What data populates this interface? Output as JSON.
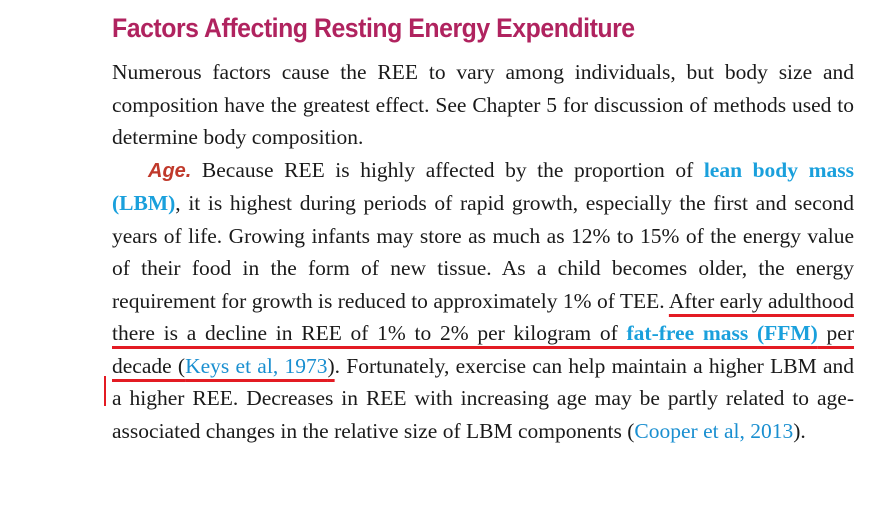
{
  "heading": "Factors Affecting Resting Energy Expenditure",
  "para1": "Numerous factors cause the REE to vary among individuals, but body size and composition have the greatest effect. See Chapter 5 for discus­sion of methods used to determine body composition.",
  "para2": {
    "runin": "Age.",
    "t1": " Because REE is highly affected by the proportion of ",
    "term1": "lean body mass (LBM)",
    "t2": ", it is highest during periods of rapid growth, espe­cially the first and second years of life. Growing infants may store as much as 12% to 15% of the energy value of their food in the form of new tissue. As a child becomes older, the energy requirement for growth is reduced to approximately 1% of TEE. ",
    "hl1": "After early adulthood there is a decline in REE of 1% to 2% per kilogram of ",
    "term2": "fat-free mass (FFM)",
    "hl2": " per decade (",
    "cite1": "Keys et al, 1973",
    "hl3": ")",
    "t3": ". Fortunately, exercise can help maintain a higher LBM and a higher REE. Decreases in REE with increasing age may be partly related to age-associated changes in the relative size of LBM components (",
    "cite2": "Cooper et al, 2013",
    "t4": ")."
  },
  "colors": {
    "heading": "#b0235f",
    "term": "#1aa0dc",
    "citation": "#1a8fd0",
    "runin": "#c0392b",
    "highlight": "#e31b23"
  }
}
